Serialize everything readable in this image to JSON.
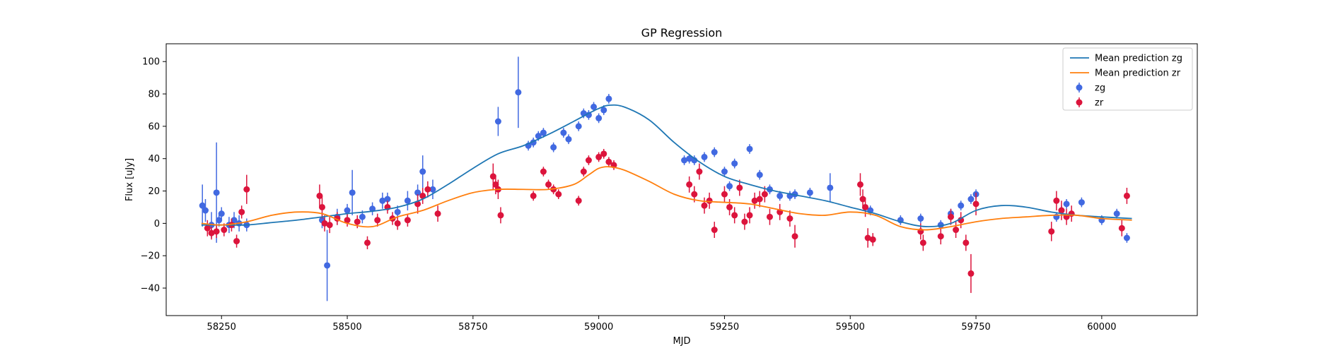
{
  "chart_data": {
    "type": "scatter",
    "title": "GP Regression",
    "xlabel": "MJD",
    "ylabel": "Flux [uJy]",
    "xlim": [
      58140,
      60190
    ],
    "ylim": [
      -57,
      111
    ],
    "xticks": [
      58250,
      58500,
      58750,
      59000,
      59250,
      59500,
      59750,
      60000
    ],
    "yticks": [
      -40,
      -20,
      0,
      20,
      40,
      60,
      80,
      100
    ],
    "grid": false,
    "legend_position": "top-right",
    "legend": [
      "Mean prediction zg",
      "Mean prediction zr",
      "zg",
      "zr"
    ],
    "colors": {
      "mean_zg": "#1f77b4",
      "mean_zr": "#ff7f0e",
      "zg": "#4169e1",
      "zr": "#dc143c"
    },
    "series": [
      {
        "name": "Mean prediction zg",
        "kind": "line",
        "color": "#1f77b4",
        "x": [
          58210,
          58250,
          58300,
          58350,
          58400,
          58450,
          58500,
          58550,
          58600,
          58650,
          58700,
          58750,
          58800,
          58850,
          58900,
          58950,
          58980,
          59000,
          59020,
          59050,
          59100,
          59150,
          59200,
          59250,
          59300,
          59350,
          59400,
          59450,
          59500,
          59550,
          59600,
          59650,
          59700,
          59750,
          59800,
          59850,
          59900,
          59950,
          60000,
          60060
        ],
        "y": [
          -1,
          -1,
          -1,
          0.5,
          2,
          4,
          6,
          7.5,
          10,
          15,
          24,
          34,
          43,
          48,
          55,
          63,
          68,
          71,
          73,
          72,
          64,
          50,
          38,
          29,
          24,
          20,
          17,
          14,
          10,
          6,
          1,
          -2,
          0,
          8,
          11,
          10,
          7,
          5,
          4,
          3
        ]
      },
      {
        "name": "Mean prediction zr",
        "kind": "line",
        "color": "#ff7f0e",
        "x": [
          58210,
          58250,
          58300,
          58350,
          58400,
          58450,
          58500,
          58550,
          58600,
          58650,
          58700,
          58750,
          58800,
          58850,
          58900,
          58950,
          58980,
          59000,
          59020,
          59050,
          59100,
          59150,
          59200,
          59250,
          59300,
          59350,
          59400,
          59450,
          59500,
          59550,
          59600,
          59650,
          59700,
          59750,
          59800,
          59850,
          59900,
          59950,
          60000,
          60060
        ],
        "y": [
          0,
          -1,
          1,
          5,
          7,
          6,
          0,
          -2,
          4,
          8,
          14,
          19,
          21,
          21,
          21,
          24,
          30,
          34,
          35,
          33,
          26,
          18,
          14,
          13,
          12,
          9,
          6,
          5,
          7,
          5,
          -2,
          -4,
          -2,
          1,
          3,
          4,
          5,
          5,
          3,
          2
        ]
      },
      {
        "name": "zg",
        "kind": "errorbar",
        "color": "#4169e1",
        "x": [
          58212,
          58218,
          58230,
          58240,
          58245,
          58250,
          58265,
          58275,
          58285,
          58300,
          58450,
          58460,
          58480,
          58500,
          58510,
          58530,
          58550,
          58570,
          58580,
          58600,
          58620,
          58640,
          58650,
          58670,
          58800,
          58840,
          58860,
          58870,
          58880,
          58890,
          58910,
          58930,
          58940,
          58960,
          58970,
          58980,
          58990,
          59000,
          59010,
          59020,
          59170,
          59180,
          59190,
          59210,
          59230,
          59250,
          59260,
          59270,
          59300,
          59320,
          59340,
          59360,
          59380,
          59390,
          59420,
          59460,
          59540,
          59600,
          59640,
          59680,
          59700,
          59720,
          59740,
          59750,
          59910,
          59920,
          59930,
          59960,
          60000,
          60030,
          60050
        ],
        "y": [
          11,
          8,
          -1,
          19,
          2,
          6,
          -1,
          2,
          0,
          -1,
          2,
          -26,
          4,
          8,
          19,
          4,
          9,
          14,
          15,
          7,
          14,
          19,
          32,
          21,
          63,
          81,
          48,
          50,
          54,
          56,
          47,
          56,
          52,
          60,
          68,
          67,
          72,
          65,
          70,
          77,
          39,
          40,
          39,
          41,
          44,
          32,
          23,
          37,
          46,
          30,
          21,
          17,
          17,
          18,
          19,
          22,
          8,
          2,
          3,
          -1,
          6,
          11,
          15,
          18,
          4,
          8,
          12,
          13,
          2,
          6,
          -9
        ],
        "err": [
          13,
          7,
          8,
          31,
          4,
          4,
          5,
          5,
          5,
          4,
          5,
          22,
          5,
          4,
          14,
          4,
          4,
          5,
          4,
          4,
          6,
          5,
          10,
          6,
          9,
          22,
          3,
          3,
          3,
          3,
          3,
          3,
          3,
          3,
          3,
          3,
          3,
          3,
          3,
          3,
          3,
          3,
          3,
          3,
          3,
          3,
          3,
          3,
          3,
          3,
          3,
          3,
          3,
          3,
          3,
          9,
          3,
          3,
          3,
          3,
          3,
          3,
          3,
          3,
          3,
          3,
          3,
          3,
          3,
          3,
          3
        ]
      },
      {
        "name": "zr",
        "kind": "errorbar",
        "color": "#dc143c",
        "x": [
          58222,
          58230,
          58240,
          58255,
          58270,
          58280,
          58290,
          58300,
          58445,
          58450,
          58455,
          58465,
          58480,
          58500,
          58520,
          58540,
          58560,
          58580,
          58590,
          58600,
          58620,
          58640,
          58650,
          58660,
          58680,
          58790,
          58795,
          58800,
          58805,
          58870,
          58890,
          58900,
          58910,
          58920,
          58960,
          58970,
          58980,
          59000,
          59010,
          59020,
          59030,
          59180,
          59190,
          59200,
          59210,
          59220,
          59230,
          59250,
          59260,
          59270,
          59280,
          59290,
          59300,
          59310,
          59320,
          59330,
          59340,
          59360,
          59380,
          59390,
          59520,
          59525,
          59530,
          59535,
          59545,
          59640,
          59645,
          59680,
          59700,
          59710,
          59720,
          59730,
          59740,
          59750,
          59900,
          59910,
          59920,
          59930,
          59940,
          60040,
          60050
        ],
        "y": [
          -3,
          -6,
          -5,
          -4,
          -1,
          -11,
          7,
          21,
          17,
          10,
          0,
          -1,
          3,
          2,
          1,
          -12,
          2,
          10,
          3,
          0,
          2,
          12,
          17,
          21,
          6,
          29,
          24,
          21,
          5,
          17,
          32,
          24,
          21,
          18,
          14,
          32,
          39,
          41,
          43,
          38,
          36,
          24,
          18,
          32,
          11,
          14,
          -4,
          18,
          10,
          5,
          22,
          1,
          5,
          14,
          15,
          18,
          4,
          7,
          3,
          -8,
          24,
          15,
          10,
          -9,
          -10,
          -5,
          -12,
          -8,
          4,
          -4,
          2,
          -12,
          -31,
          12,
          -5,
          14,
          8,
          4,
          6,
          -3,
          17
        ],
        "err": [
          5,
          4,
          4,
          4,
          4,
          4,
          4,
          9,
          7,
          7,
          5,
          5,
          4,
          4,
          4,
          4,
          4,
          4,
          4,
          4,
          4,
          6,
          5,
          5,
          5,
          8,
          6,
          6,
          5,
          3,
          3,
          3,
          3,
          3,
          3,
          3,
          3,
          3,
          3,
          3,
          3,
          5,
          5,
          5,
          5,
          5,
          5,
          5,
          5,
          5,
          5,
          5,
          5,
          5,
          5,
          5,
          5,
          5,
          5,
          7,
          7,
          6,
          6,
          6,
          4,
          5,
          5,
          5,
          5,
          5,
          5,
          5,
          12,
          7,
          6,
          6,
          6,
          5,
          5,
          5,
          5
        ]
      }
    ]
  }
}
